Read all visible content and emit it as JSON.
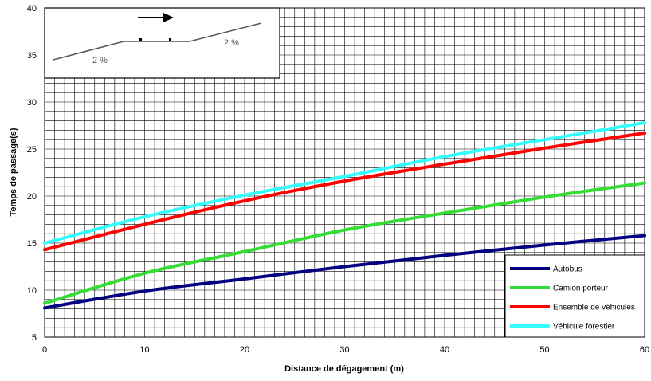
{
  "chart_data": {
    "type": "line",
    "title": "",
    "xlabel": "Distance de dégagement  (m)",
    "ylabel": "Temps de passage(s)",
    "xlim": [
      0,
      60
    ],
    "ylim": [
      5,
      40
    ],
    "x_ticks": [
      0,
      10,
      20,
      30,
      40,
      50,
      60
    ],
    "y_ticks": [
      5,
      10,
      15,
      20,
      25,
      30,
      35,
      40
    ],
    "grid": true,
    "legend_position": "bottom-right",
    "x": [
      0,
      10,
      20,
      30,
      40,
      50,
      60
    ],
    "series": [
      {
        "name": "Autobus",
        "color": "#000080",
        "values": [
          8.1,
          9.9,
          11.2,
          12.5,
          13.7,
          14.8,
          15.8
        ]
      },
      {
        "name": "Camion porteur",
        "color": "#33dd33",
        "values": [
          8.6,
          11.8,
          14.1,
          16.4,
          18.2,
          19.9,
          21.4
        ]
      },
      {
        "name": "Ensemble de véhicules",
        "color": "#ff0000",
        "values": [
          14.3,
          17.0,
          19.5,
          21.6,
          23.4,
          25.1,
          26.7
        ]
      },
      {
        "name": "Véhicule forestier",
        "color": "#33ffff",
        "values": [
          15.0,
          17.8,
          20.1,
          22.1,
          24.2,
          26.0,
          27.8
        ]
      }
    ],
    "inset": {
      "left_grade": "2 %",
      "right_grade": "2 %",
      "arrow_direction": "right"
    }
  }
}
